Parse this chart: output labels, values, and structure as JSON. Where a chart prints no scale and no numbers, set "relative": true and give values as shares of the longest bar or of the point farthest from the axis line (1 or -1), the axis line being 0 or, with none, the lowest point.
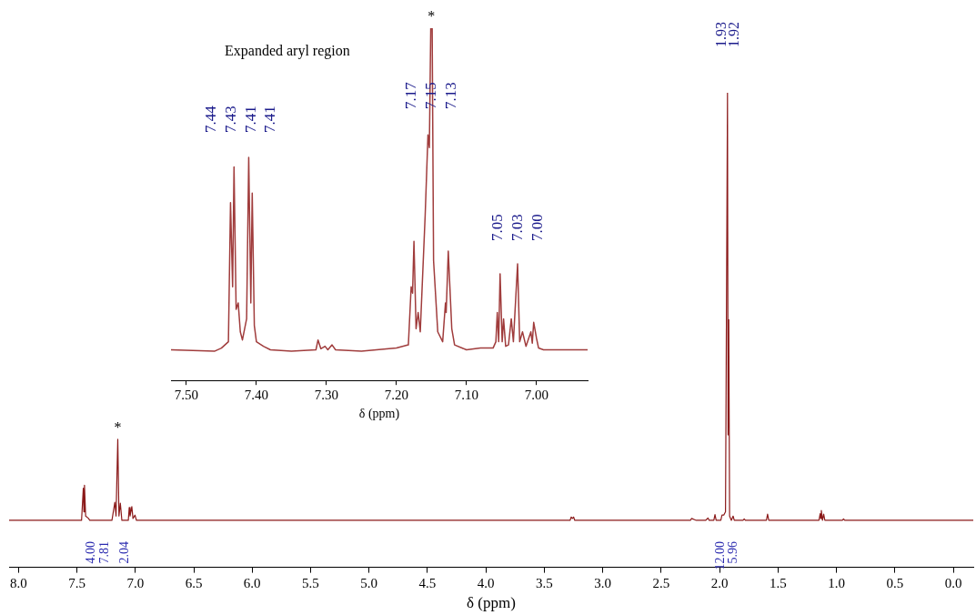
{
  "chart_data": [
    {
      "type": "line",
      "relative": true,
      "color": "#8b1a1a",
      "xlabel": "δ (ppm)",
      "xlim": [
        8.08,
        -0.17
      ],
      "xticks": [
        {
          "value": 8,
          "label": "8.0"
        },
        7.5,
        {
          "value": 7,
          "label": "7.0"
        },
        6.5,
        {
          "value": 6,
          "label": "6.0"
        },
        5.5,
        {
          "value": 5,
          "label": "5.0"
        },
        4.5,
        {
          "value": 4,
          "label": "4.0"
        },
        3.5,
        {
          "value": 3,
          "label": "3.0"
        },
        2.5,
        {
          "value": 2,
          "label": "2.0"
        },
        1.5,
        {
          "value": 1,
          "label": "1.0"
        },
        0.5,
        {
          "value": 0,
          "label": "0.0"
        }
      ],
      "x": [
        8.08,
        7.46,
        7.445,
        7.44,
        7.435,
        7.425,
        7.4,
        7.39,
        7.2,
        7.175,
        7.165,
        7.15,
        7.14,
        7.128,
        7.115,
        7.06,
        7.052,
        7.045,
        7.03,
        7.02,
        7.003,
        6.99,
        3.28,
        3.27,
        3.26,
        3.25,
        3.24,
        2.25,
        2.24,
        2.2,
        2.12,
        2.1,
        2.09,
        2.05,
        2.04,
        2.03,
        1.99,
        1.98,
        1.965,
        1.95,
        1.933,
        1.928,
        1.922,
        1.915,
        1.9,
        1.885,
        1.875,
        1.8,
        1.79,
        1.78,
        1.6,
        1.59,
        1.58,
        1.15,
        1.14,
        1.135,
        1.13,
        1.12,
        1.11,
        1.1,
        0.95,
        0.94,
        0.93,
        -0.17
      ],
      "values": [
        0.099,
        0.099,
        0.167,
        0.117,
        0.173,
        0.108,
        0.103,
        0.099,
        0.099,
        0.137,
        0.108,
        0.27,
        0.108,
        0.135,
        0.099,
        0.099,
        0.126,
        0.108,
        0.128,
        0.103,
        0.11,
        0.099,
        0.099,
        0.106,
        0.103,
        0.106,
        0.099,
        0.099,
        0.103,
        0.099,
        0.099,
        0.104,
        0.099,
        0.099,
        0.111,
        0.099,
        0.099,
        0.11,
        0.11,
        0.117,
        1,
        0.279,
        0.522,
        0.108,
        0.099,
        0.108,
        0.099,
        0.099,
        0.102,
        0.099,
        0.099,
        0.112,
        0.099,
        0.099,
        0.113,
        0.103,
        0.12,
        0.099,
        0.112,
        0.099,
        0.099,
        0.102,
        0.099,
        0.099
      ],
      "annotations": [
        {
          "text": "*",
          "x": 7.15,
          "y": 0.27
        },
        "1.93",
        "1.92",
        "4.00",
        "7.81",
        "2.04",
        "12.00",
        "5.96"
      ]
    },
    {
      "type": "line",
      "relative": true,
      "color": "#a03c3c",
      "xlabel": "δ (ppm)",
      "xlim": [
        7.522,
        6.927
      ],
      "xticks": [
        {
          "value": 7.5,
          "label": "7.50"
        },
        {
          "value": 7.4,
          "label": "7.40"
        },
        {
          "value": 7.3,
          "label": "7.30"
        },
        {
          "value": 7.2,
          "label": "7.20"
        },
        {
          "value": 7.1,
          "label": "7.10"
        },
        {
          "value": 7,
          "label": "7.00"
        }
      ],
      "x": [
        7.522,
        7.46,
        7.45,
        7.44,
        7.437,
        7.434,
        7.432,
        7.429,
        7.426,
        7.423,
        7.42,
        7.414,
        7.411,
        7.408,
        7.406,
        7.403,
        7.4,
        7.39,
        7.38,
        7.35,
        7.315,
        7.312,
        7.308,
        7.302,
        7.298,
        7.292,
        7.287,
        7.25,
        7.2,
        7.183,
        7.179,
        7.177,
        7.175,
        7.172,
        7.169,
        7.166,
        7.159,
        7.155,
        7.153,
        7.151,
        7.149,
        7.147,
        7.141,
        7.134,
        7.13,
        7.129,
        7.126,
        7.121,
        7.117,
        7.1,
        7.08,
        7.062,
        7.058,
        7.056,
        7.054,
        7.052,
        7.049,
        7.047,
        7.044,
        7.04,
        7.036,
        7.033,
        7.027,
        7.024,
        7.02,
        7.015,
        7.008,
        7.006,
        7.004,
        7,
        6.997,
        6.99,
        6.927
      ],
      "values": [
        0.087,
        0.083,
        0.092,
        0.11,
        0.505,
        0.266,
        0.606,
        0.202,
        0.22,
        0.138,
        0.115,
        0.175,
        0.633,
        0.22,
        0.532,
        0.156,
        0.11,
        0.097,
        0.087,
        0.083,
        0.087,
        0.115,
        0.09,
        0.097,
        0.087,
        0.101,
        0.087,
        0.083,
        0.092,
        0.101,
        0.266,
        0.248,
        0.395,
        0.147,
        0.193,
        0.138,
        0.468,
        0.697,
        0.661,
        1,
        1,
        0.34,
        0.138,
        0.11,
        0.22,
        0.193,
        0.367,
        0.147,
        0.101,
        0.087,
        0.092,
        0.092,
        0.11,
        0.193,
        0.11,
        0.303,
        0.11,
        0.175,
        0.097,
        0.101,
        0.175,
        0.11,
        0.331,
        0.11,
        0.138,
        0.097,
        0.138,
        0.106,
        0.165,
        0.12,
        0.092,
        0.087,
        0.087
      ],
      "annotations": [
        "Expanded aryl region",
        {
          "text": "*",
          "x": 7.15,
          "y": 1
        },
        "7.44",
        "7.43",
        "7.41",
        "7.41",
        "7.17",
        "7.15",
        "7.13",
        "7.05",
        "7.03",
        "7.00"
      ]
    }
  ]
}
